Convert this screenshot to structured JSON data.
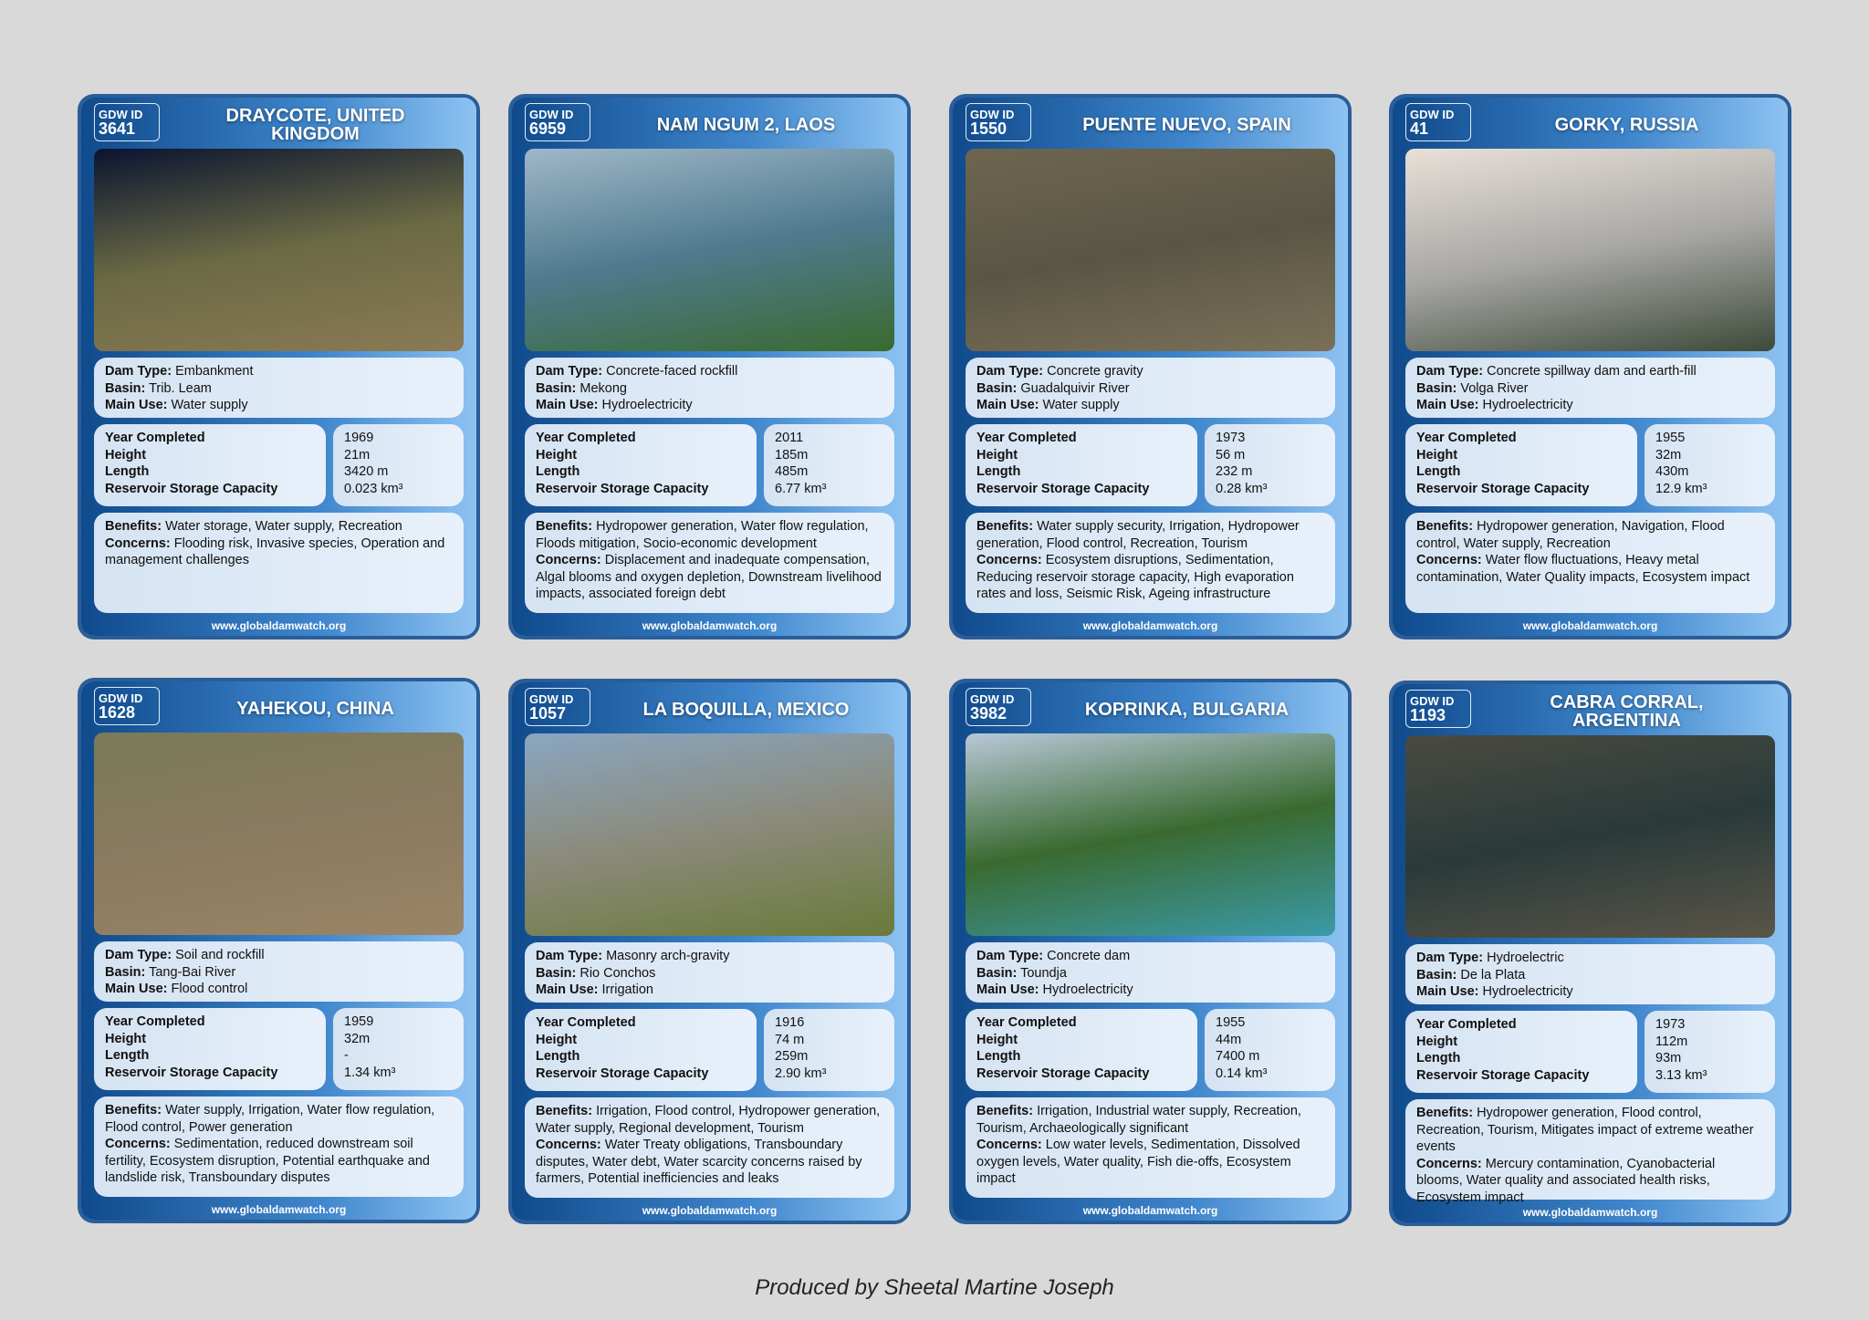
{
  "url": "www.globaldamwatch.org",
  "id_label": "GDW ID",
  "labels": {
    "type": "Dam Type:",
    "basin": "Basin:",
    "use": "Main Use:",
    "year": "Year Completed",
    "height": "Height",
    "length": "Length",
    "capacity": "Reservoir Storage Capacity",
    "benefits": "Benefits:",
    "concerns": "Concerns:"
  },
  "credit": "Produced by Sheetal Martine Joseph",
  "cards": [
    {
      "id": "3641",
      "name": "DRAYCOTE, UNITED KINGDOM",
      "type": "Embankment",
      "basin": "Trib. Leam",
      "use": "Water supply",
      "year": "1969",
      "height": "21m",
      "length": "3420 m",
      "capacity": "0.023 km³",
      "benefits": "Water storage, Water supply, Recreation",
      "concerns": "Flooding risk, Invasive species, Operation and management challenges",
      "img": [
        "#0a1430",
        "#6b6a45",
        "#8a7a55"
      ]
    },
    {
      "id": "6959",
      "name": "NAM NGUM 2, LAOS",
      "type": "Concrete-faced rockfill",
      "basin": "Mekong",
      "use": "Hydroelectricity",
      "year": "2011",
      "height": "185m",
      "length": "485m",
      "capacity": "6.77 km³",
      "benefits": "Hydropower generation, Water flow regulation, Floods mitigation, Socio-economic development",
      "concerns": "Displacement and inadequate compensation, Algal blooms and oxygen depletion, Downstream livelihood impacts, associated foreign debt",
      "img": [
        "#9fb7c8",
        "#4f7a8e",
        "#3a6a30"
      ]
    },
    {
      "id": "1550",
      "name": "PUENTE NUEVO, SPAIN",
      "type": "Concrete gravity",
      "basin": "Guadalquivir River",
      "use": "Water supply",
      "year": "1973",
      "height": "56 m",
      "length": "232 m",
      "capacity": "0.28 km³",
      "benefits": "Water supply security, Irrigation, Hydropower generation, Flood control, Recreation, Tourism",
      "concerns": "Ecosystem disruptions, Sedimentation, Reducing reservoir storage capacity, High evaporation rates and loss, Seismic Risk, Ageing infrastructure",
      "img": [
        "#6d6550",
        "#5a5644",
        "#7a7058"
      ]
    },
    {
      "id": "41",
      "name": "GORKY, RUSSIA",
      "type": "Concrete spillway dam and earth-fill",
      "basin": " Volga River",
      "use": "Hydroelectricity",
      "year": "1955",
      "height": "32m",
      "length": "430m",
      "capacity": "12.9 km³",
      "benefits": "Hydropower generation, Navigation, Flood control, Water supply, Recreation",
      "concerns": "Water flow fluctuations, Heavy metal contamination, Water Quality impacts, Ecosystem impact",
      "img": [
        "#e8e0d8",
        "#a9a8a6",
        "#3e4a3a"
      ]
    },
    {
      "id": "1628",
      "name": "YAHEKOU, CHINA",
      "type": "Soil and rockfill",
      "basin": "Tang-Bai River",
      "use": "Flood control",
      "year": "1959",
      "height": "32m",
      "length": "-",
      "capacity": "1.34 km³",
      "benefits": "Water supply, Irrigation, Water flow regulation, Flood control, Power generation",
      "concerns": "Sedimentation, reduced downstream soil fertility, Ecosystem disruption, Potential earthquake and landslide risk, Transboundary disputes",
      "img": [
        "#7a7a5a",
        "#8a7a60",
        "#9a8466"
      ]
    },
    {
      "id": "1057",
      "name": "LA BOQUILLA, MEXICO",
      "type": "Masonry arch-gravity",
      "basin": "Rio Conchos",
      "use": "Irrigation",
      "year": "1916",
      "height": "74 m",
      "length": "259m",
      "capacity": "2.90 km³",
      "benefits": "Irrigation, Flood control, Hydropower generation, Water supply, Regional development, Tourism",
      "concerns": "Water Treaty obligations, Transboundary disputes, Water debt, Water scarcity concerns raised by farmers, Potential inefficiencies and leaks",
      "img": [
        "#8aa6c0",
        "#8b8a7a",
        "#6a7a3a"
      ]
    },
    {
      "id": "3982",
      "name": "KOPRINKA, BULGARIA",
      "type": "Concrete dam",
      "basin": "Toundja",
      "use": "Hydroelectricity",
      "year": "1955",
      "height": "44m",
      "length": "7400 m",
      "capacity": "0.14 km³",
      "benefits": "Irrigation, Industrial water supply, Recreation, Tourism, Archaeologically significant",
      "concerns": "Low water levels, Sedimentation, Dissolved oxygen levels, Water quality, Fish die-offs, Ecosystem impact",
      "img": [
        "#b8c8d8",
        "#3a6a30",
        "#3a9aa8"
      ]
    },
    {
      "id": "1193",
      "name": "CABRA CORRAL, ARGENTINA",
      "type": "Hydroelectric",
      "basin": "De la Plata",
      "use": "Hydroelectricity",
      "year": "1973",
      "height": "112m",
      "length": "93m",
      "capacity": "3.13 km³",
      "benefits": "Hydropower generation, Flood control, Recreation, Tourism, Mitigates impact of extreme weather events",
      "concerns": "Mercury contamination, Cyanobacterial blooms, Water quality and associated health risks, Ecosystem impact",
      "img": [
        "#4a4a40",
        "#2a3a3a",
        "#5a5548"
      ]
    }
  ]
}
